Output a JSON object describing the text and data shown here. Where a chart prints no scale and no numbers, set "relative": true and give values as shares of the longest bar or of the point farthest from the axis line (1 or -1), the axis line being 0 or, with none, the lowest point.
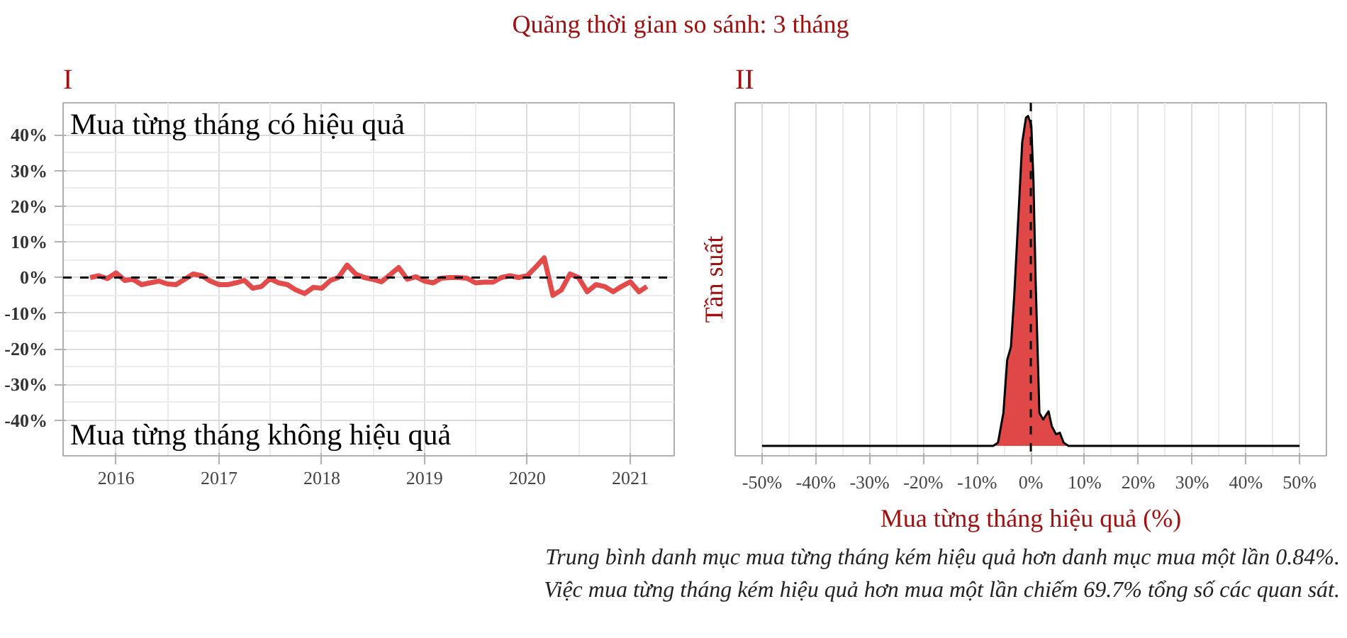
{
  "chart_data": [
    {
      "type": "line",
      "title": "I",
      "x": [
        "2015-10",
        "2015-11",
        "2015-12",
        "2016-01",
        "2016-02",
        "2016-03",
        "2016-04",
        "2016-05",
        "2016-06",
        "2016-07",
        "2016-08",
        "2016-09",
        "2016-10",
        "2016-11",
        "2016-12",
        "2017-01",
        "2017-02",
        "2017-03",
        "2017-04",
        "2017-05",
        "2017-06",
        "2017-07",
        "2017-08",
        "2017-09",
        "2017-10",
        "2017-11",
        "2017-12",
        "2018-01",
        "2018-02",
        "2018-03",
        "2018-04",
        "2018-05",
        "2018-06",
        "2018-07",
        "2018-08",
        "2018-09",
        "2018-10",
        "2018-11",
        "2018-12",
        "2019-01",
        "2019-02",
        "2019-03",
        "2019-04",
        "2019-05",
        "2019-06",
        "2019-07",
        "2019-08",
        "2019-09",
        "2019-10",
        "2019-11",
        "2019-12",
        "2020-01",
        "2020-02",
        "2020-03",
        "2020-04",
        "2020-05",
        "2020-06",
        "2020-07",
        "2020-08",
        "2020-09",
        "2020-10",
        "2020-11",
        "2020-12",
        "2021-01",
        "2021-02",
        "2021-03"
      ],
      "series": [
        {
          "color": "#e34a4a",
          "values": [
            0,
            0.5,
            -0.3,
            1.3,
            -0.8,
            -0.5,
            -2,
            -1.5,
            -1,
            -1.8,
            -2,
            -0.5,
            1,
            0.5,
            -1,
            -2,
            -2,
            -1.5,
            -0.8,
            -3,
            -2.5,
            -0.3,
            -1.5,
            -2,
            -3.5,
            -4.5,
            -2.8,
            -3,
            -0.8,
            0,
            3.5,
            1,
            0,
            -0.5,
            -1.2,
            0.8,
            2.8,
            -0.5,
            0.2,
            -1,
            -1.5,
            -0.2,
            0,
            0,
            -0.2,
            -1.5,
            -1.3,
            -1.3,
            0,
            0.5,
            0,
            0.5,
            3,
            5.5,
            -5,
            -3.5,
            1,
            0,
            -4,
            -2,
            -2.5,
            -4,
            -2.5,
            -1.2,
            -4,
            -2.5
          ]
        }
      ],
      "xlim": [
        "2015-06-27",
        "2021-06-06"
      ],
      "xticks": [
        {
          "value": "2016-01-01",
          "label": "2016"
        },
        {
          "value": "2017-01-01",
          "label": "2017"
        },
        {
          "value": "2018-01-01",
          "label": "2018"
        },
        {
          "value": "2019-01-01",
          "label": "2019"
        },
        {
          "value": "2020-01-01",
          "label": "2020"
        },
        {
          "value": "2021-01-01",
          "label": "2021"
        }
      ],
      "ylim": [
        -50,
        49
      ],
      "yticks": [
        {
          "value": -40,
          "label": "-40%"
        },
        {
          "value": -30,
          "label": "-30%"
        },
        {
          "value": -20,
          "label": "-20%"
        },
        {
          "value": -10,
          "label": "-10%"
        },
        {
          "value": 0,
          "label": "0%"
        },
        {
          "value": 10,
          "label": "10%"
        },
        {
          "value": 20,
          "label": "20%"
        },
        {
          "value": 30,
          "label": "30%"
        },
        {
          "value": 40,
          "label": "40%"
        }
      ],
      "grid": true,
      "line_style": "solid",
      "ref_lines": [
        {
          "axis": "y",
          "value": 0,
          "color": "#000000",
          "line_style": "dashed"
        }
      ],
      "annotations": [
        "Quãng thời gian so sánh: 3 tháng",
        "Mua từng tháng có hiệu quả",
        "Mua từng tháng không hiệu quả"
      ]
    },
    {
      "type": "area",
      "title": "II",
      "xlabel": "Mua từng tháng hiệu quả (%)",
      "ylabel": "Tần suất",
      "relative": true,
      "x": [
        -50,
        -7,
        -6.1,
        -5.1,
        -4.4,
        -3.7,
        -3.1,
        -2.3,
        -1.6,
        -0.9,
        -0.5,
        0.1,
        0.5,
        0.9,
        1.6,
        2.3,
        3.3,
        3.9,
        4.7,
        5.4,
        6.1,
        7,
        50
      ],
      "series": [
        {
          "color": "#e04848",
          "values": [
            0,
            0,
            0.01,
            0.1,
            0.26,
            0.3,
            0.45,
            0.7,
            0.92,
            0.995,
            1,
            0.97,
            0.8,
            0.5,
            0.1,
            0.08,
            0.105,
            0.06,
            0.035,
            0.04,
            0.01,
            0,
            0
          ]
        }
      ],
      "xlim": [
        -55,
        55
      ],
      "xticks": [
        {
          "value": -50,
          "label": "-50%"
        },
        {
          "value": -40,
          "label": "-40%"
        },
        {
          "value": -30,
          "label": "-30%"
        },
        {
          "value": -20,
          "label": "-20%"
        },
        {
          "value": -10,
          "label": "-10%"
        },
        {
          "value": 0,
          "label": "0%"
        },
        {
          "value": 10,
          "label": "10%"
        },
        {
          "value": 20,
          "label": "20%"
        },
        {
          "value": 30,
          "label": "30%"
        },
        {
          "value": 40,
          "label": "40%"
        },
        {
          "value": 50,
          "label": "50%"
        }
      ],
      "grid": "x",
      "ref_lines": [
        {
          "axis": "x",
          "value": 0,
          "color": "#000000",
          "line_style": "dashed"
        }
      ],
      "annotations": [
        "Trung bình danh mục mua từng tháng kém hiệu quả hơn danh mục mua một lần 0.84%.",
        "Việc mua từng tháng kém hiệu quả hơn mua một lần chiếm 69.7% tổng số các quan sát."
      ]
    }
  ]
}
